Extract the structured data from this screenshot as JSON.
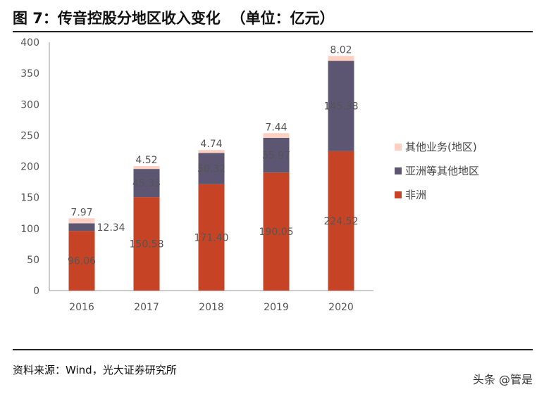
{
  "header": {
    "title": "图 7：传音控股分地区收入变化  （单位：亿元）"
  },
  "footer": {
    "source": "资料来源：Wind，光大证券研究所",
    "watermark": "头条 @管是"
  },
  "chart_data": {
    "type": "bar",
    "stacked": true,
    "categories": [
      "2016",
      "2017",
      "2018",
      "2019",
      "2020"
    ],
    "series": [
      {
        "name": "非洲",
        "color": "#c64425",
        "values": [
          96.06,
          150.58,
          171.4,
          190.05,
          224.52
        ]
      },
      {
        "name": "亚洲等其他地区",
        "color": "#5c5673",
        "values": [
          12.34,
          45.33,
          50.32,
          55.97,
          145.38
        ]
      },
      {
        "name": "其他业务(地区)",
        "color": "#fdd0c2",
        "values": [
          7.97,
          4.52,
          4.74,
          7.44,
          8.02
        ]
      }
    ],
    "ylim": [
      0,
      400
    ],
    "yticks": [
      0,
      50,
      100,
      150,
      200,
      250,
      300,
      350,
      400
    ],
    "legend": "right",
    "grid": false
  }
}
